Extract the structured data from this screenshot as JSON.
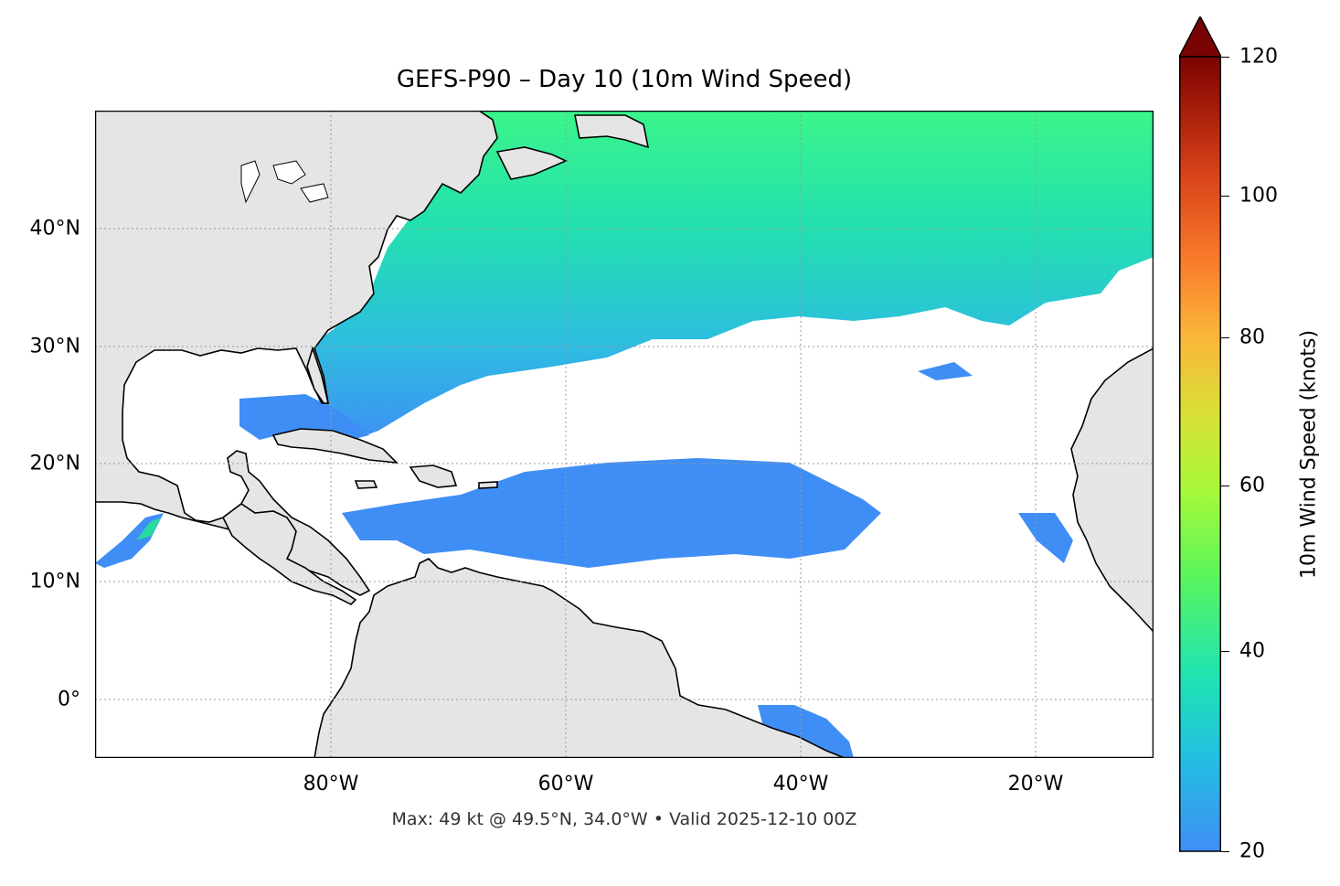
{
  "title": "GEFS-P90 – Day 10 (10m Wind Speed)",
  "footer": "Max: 49 kt @ 49.5°N, 34.0°W • Valid 2025-12-10 00Z",
  "map": {
    "projection": "PlateCarree",
    "lon_range": [
      -100,
      -10
    ],
    "lat_range": [
      -5,
      50
    ],
    "gridlines": true,
    "land_color": "#e5e5e5",
    "ocean_color": "#ffffff",
    "x_ticks": [
      "80°W",
      "60°W",
      "40°W",
      "20°W"
    ],
    "y_ticks": [
      "40°N",
      "30°N",
      "20°N",
      "10°N",
      "0°"
    ]
  },
  "colorbar": {
    "label": "10m Wind Speed (knots)",
    "ticks": [
      "120",
      "100",
      "80",
      "60",
      "40",
      "20"
    ],
    "range": [
      20,
      120
    ],
    "extend": "max",
    "colormap": "turbo"
  },
  "wind_field": {
    "max_kt": 49,
    "max_location": "49.5°N, 34.0°W",
    "threshold_kt": 20
  }
}
